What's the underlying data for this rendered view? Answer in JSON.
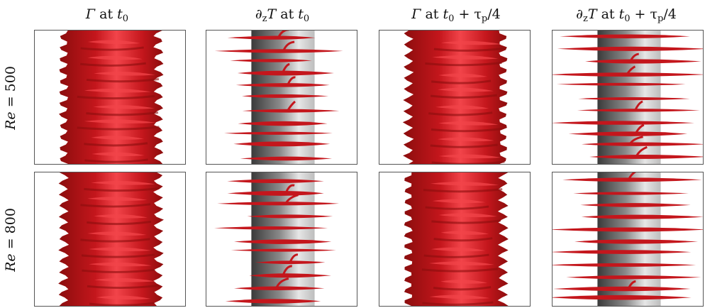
{
  "columns": [
    {
      "sym": "Γ",
      "mid": " at ",
      "t": "t",
      "sub": "0",
      "tail": ""
    },
    {
      "sym": "∂",
      "zsub": "z",
      "sym2": "T",
      "mid": " at ",
      "t": "t",
      "sub": "0",
      "tail": ""
    },
    {
      "sym": "Γ",
      "mid": " at ",
      "t": "t",
      "sub": "0",
      "tail": " + τ",
      "tailsub": "p",
      "tailend": "/4"
    },
    {
      "sym": "∂",
      "zsub": "z",
      "sym2": "T",
      "mid": " at ",
      "t": "t",
      "sub": "0",
      "tail": " + τ",
      "tailsub": "p",
      "tailend": "/4"
    }
  ],
  "rows": [
    {
      "label": "Re = 500"
    },
    {
      "label": "Re = 800"
    }
  ],
  "colors": {
    "surface_dark": "#8b0d0d",
    "surface_mid": "#c4161c",
    "surface_light": "#f2444a",
    "cylinder_dark": "#3a3a3a",
    "cylinder_light": "#e6e6e6"
  }
}
